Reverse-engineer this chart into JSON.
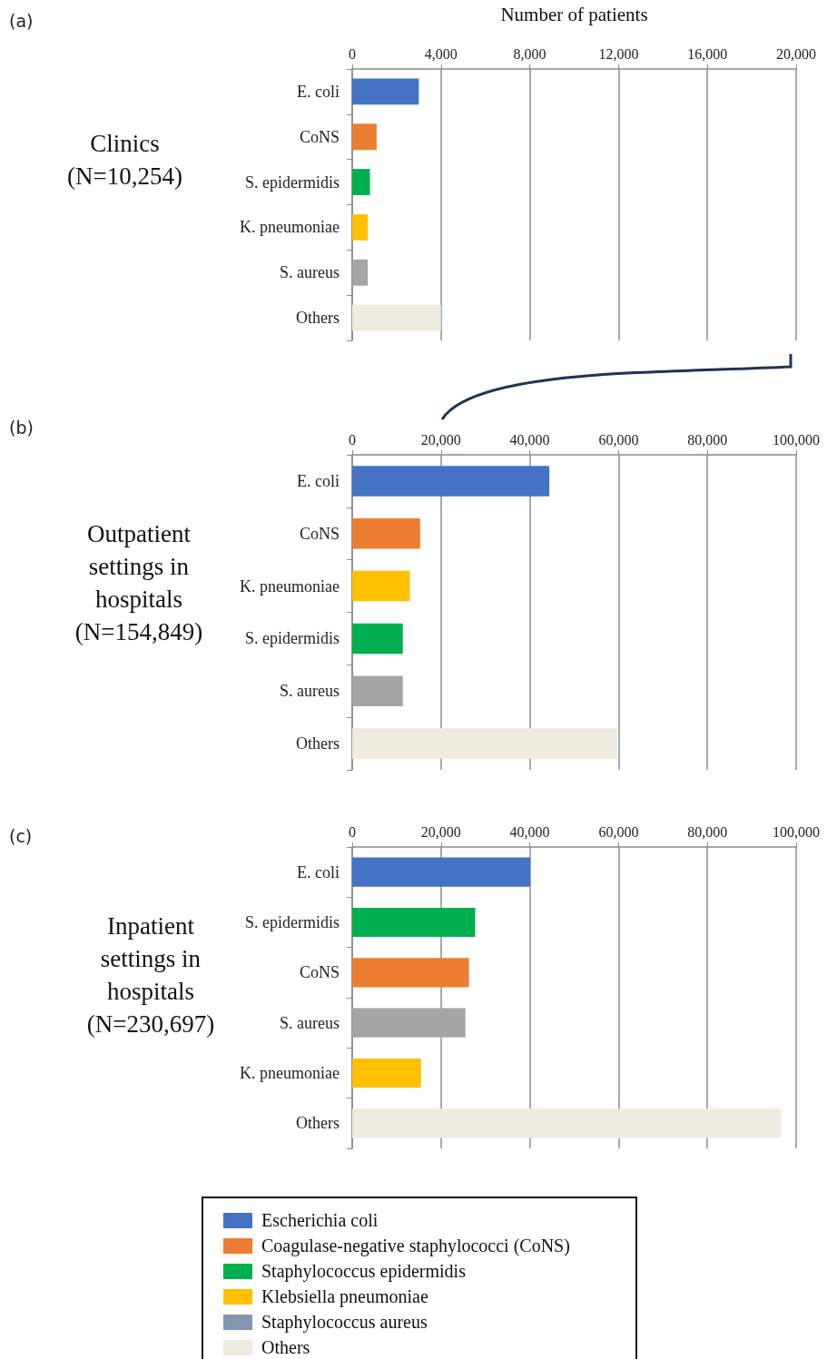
{
  "chart_data": [
    {
      "type": "bar",
      "orientation": "horizontal",
      "title": "Clinics (N=10,254)",
      "xlabel": "Number of patients",
      "annotations": [
        "(a)"
      ],
      "categories": [
        "E. coli",
        "CoNS",
        "S. epidermidis",
        "K. pneumoniae",
        "S. aureus",
        "Others"
      ],
      "values": [
        3000,
        1100,
        800,
        700,
        700,
        4000
      ],
      "colors": [
        "#4472c4",
        "#ed7d31",
        "#00b050",
        "#ffc000",
        "#a5a5a5",
        "#eeece1"
      ],
      "xlim": [
        0,
        20000
      ],
      "xticks": [
        {
          "value": 0,
          "label": "0"
        },
        {
          "value": 4000,
          "label": "4,000"
        },
        {
          "value": 8000,
          "label": "8,000"
        },
        {
          "value": 12000,
          "label": "12,000"
        },
        {
          "value": 16000,
          "label": "16,000"
        },
        {
          "value": 20000,
          "label": "20,000"
        }
      ],
      "grid": "x"
    },
    {
      "type": "bar",
      "orientation": "horizontal",
      "title": "Outpatient settings in hospitals (N=154,849)",
      "annotations": [
        "(b)"
      ],
      "categories": [
        "E. coli",
        "CoNS",
        "K. pneumoniae",
        "S. epidermidis",
        "S. aureus",
        "Others"
      ],
      "values": [
        44400,
        15300,
        13000,
        11400,
        11400,
        59700
      ],
      "colors": [
        "#4472c4",
        "#ed7d31",
        "#ffc000",
        "#00b050",
        "#a5a5a5",
        "#eeece1"
      ],
      "xlim": [
        0,
        100000
      ],
      "xticks": [
        {
          "value": 0,
          "label": "0"
        },
        {
          "value": 20000,
          "label": "20,000"
        },
        {
          "value": 40000,
          "label": "40,000"
        },
        {
          "value": 60000,
          "label": "60,000"
        },
        {
          "value": 80000,
          "label": "80,000"
        },
        {
          "value": 100000,
          "label": "100,000"
        }
      ],
      "grid": "x"
    },
    {
      "type": "bar",
      "orientation": "horizontal",
      "title": "Inpatient settings in hospitals (N=230,697)",
      "annotations": [
        "(c)"
      ],
      "categories": [
        "E. coli",
        "S. epidermidis",
        "CoNS",
        "S. aureus",
        "K. pneumoniae",
        "Others"
      ],
      "values": [
        40100,
        27700,
        26300,
        25500,
        15500,
        96600
      ],
      "colors": [
        "#4472c4",
        "#00b050",
        "#ed7d31",
        "#a5a5a5",
        "#ffc000",
        "#eeece1"
      ],
      "xlim": [
        0,
        100000
      ],
      "xticks": [
        {
          "value": 0,
          "label": "0"
        },
        {
          "value": 20000,
          "label": "20,000"
        },
        {
          "value": 40000,
          "label": "40,000"
        },
        {
          "value": 60000,
          "label": "60,000"
        },
        {
          "value": 80000,
          "label": "80,000"
        },
        {
          "value": 100000,
          "label": "100,000"
        }
      ],
      "grid": "x"
    },
    {
      "type": "other",
      "categories": [
        "Escherichia coli",
        "Coagulase-negative staphylococci (CoNS)",
        "Staphylococcus epidermidis",
        "Klebsiella pneumoniae",
        "Staphylococcus aureus",
        "Others"
      ],
      "colors": [
        "#4472c4",
        "#ed7d31",
        "#00b050",
        "#ffc000",
        "#8497b0",
        "#eeece1"
      ]
    }
  ]
}
